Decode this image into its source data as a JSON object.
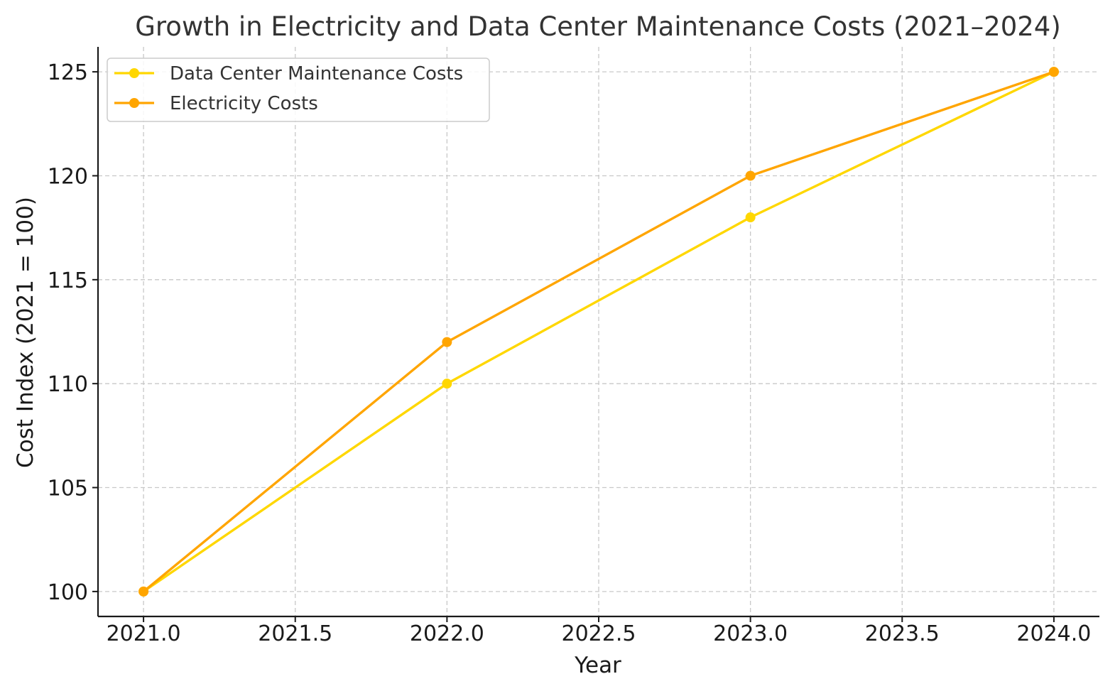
{
  "colors": {
    "data_center": "#FFD700",
    "electricity": "#FFA500",
    "grid": "#c8c8c8",
    "text": "#1a1a1a"
  },
  "chart_data": {
    "type": "line",
    "title": "Growth in Electricity and Data Center Maintenance Costs (2021–2024)",
    "xlabel": "Year",
    "ylabel": "Cost Index (2021 = 100)",
    "x": [
      2021,
      2022,
      2023,
      2024
    ],
    "xlim": [
      2020.85,
      2024.15
    ],
    "ylim": [
      98.8,
      126.2
    ],
    "x_ticks": [
      2021.0,
      2021.5,
      2022.0,
      2022.5,
      2023.0,
      2023.5,
      2024.0
    ],
    "x_tick_labels": [
      "2021.0",
      "2021.5",
      "2022.0",
      "2022.5",
      "2023.0",
      "2023.5",
      "2024.0"
    ],
    "y_ticks": [
      100,
      105,
      110,
      115,
      120,
      125
    ],
    "y_tick_labels": [
      "100",
      "105",
      "110",
      "115",
      "120",
      "125"
    ],
    "grid": true,
    "legend_position": "top-left",
    "series": [
      {
        "name": "Data Center Maintenance Costs",
        "color": "#FFD700",
        "values": [
          100,
          110,
          118,
          125
        ]
      },
      {
        "name": "Electricity Costs",
        "color": "#FFA500",
        "values": [
          100,
          112,
          120,
          125
        ]
      }
    ]
  }
}
